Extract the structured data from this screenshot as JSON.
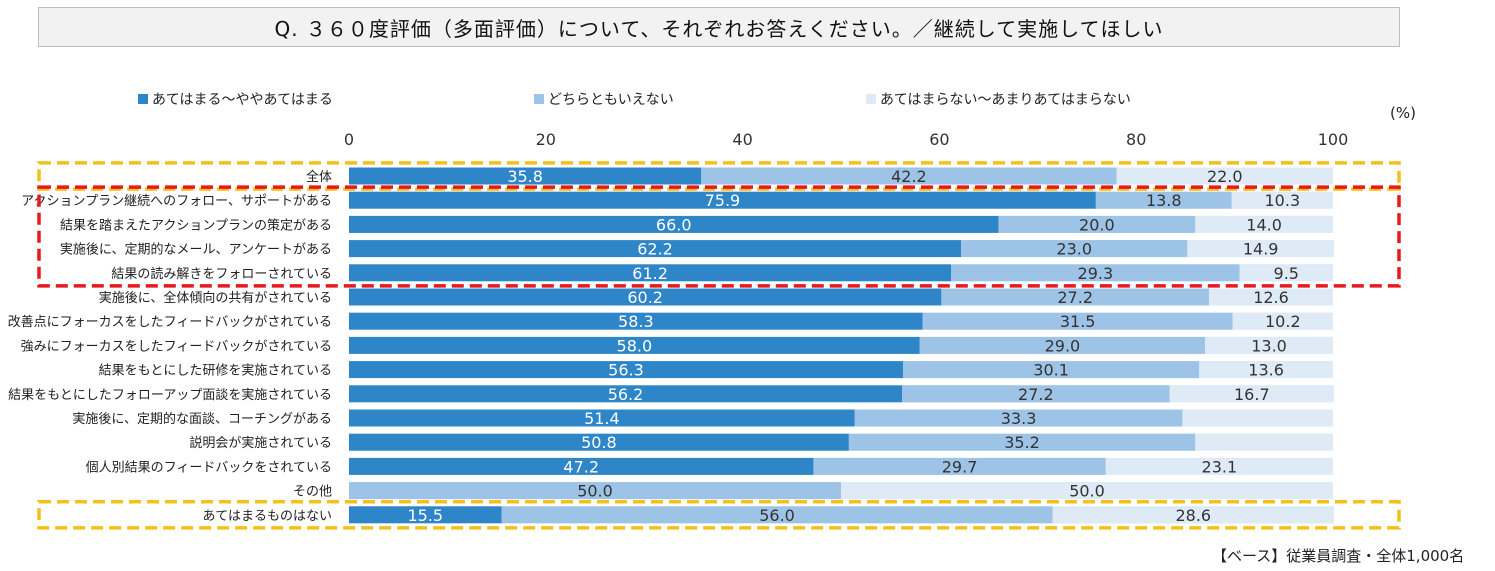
{
  "title": "Q. ３６０度評価（多面評価）について、それぞれお答えください。／継続して実施してほしい",
  "unit_label": "(%)",
  "base_note": "【ベース】従業員調査・全体1,000名",
  "colors": {
    "agree": "#2e86c8",
    "neutral": "#9dc3e6",
    "disagree": "#deebf7",
    "highlight_yellow": "#f3c01c",
    "highlight_red": "#e8191b"
  },
  "legend": [
    {
      "label": "あてはまる～ややあてはまる",
      "color": "#2e86c8"
    },
    {
      "label": "どちらともいえない",
      "color": "#9dc3e6"
    },
    {
      "label": "あてはまらない～あまりあてはまらない",
      "color": "#deebf7"
    }
  ],
  "chart_data": {
    "type": "bar",
    "orientation": "horizontal",
    "stacked": true,
    "xlim": [
      0,
      100
    ],
    "xticks": [
      "0",
      "20",
      "40",
      "60",
      "80",
      "100"
    ],
    "categories": [
      "全体",
      "アクションプラン継続へのフォロー、サポートがある",
      "結果を踏まえたアクションプランの策定がある",
      "実施後に、定期的なメール、アンケートがある",
      "結果の読み解きをフォローされている",
      "実施後に、全体傾向の共有がされている",
      "改善点にフォーカスをしたフィードバックがされている",
      "強みにフォーカスをしたフィードバックがされている",
      "結果をもとにした研修を実施されている",
      "結果をもとにしたフォローアップ面談を実施されている",
      "実施後に、定期的な面談、コーチングがある",
      "説明会が実施されている",
      "個人別結果のフィードバックをされている",
      "その他",
      "あてはまるものはない"
    ],
    "series": [
      {
        "name": "あてはまる～ややあてはまる",
        "values": [
          35.8,
          75.9,
          66.0,
          62.2,
          61.2,
          60.2,
          58.3,
          58.0,
          56.3,
          56.2,
          51.4,
          50.8,
          47.2,
          0.0,
          15.5
        ],
        "labels": [
          "35.8",
          "75.9",
          "66.0",
          "62.2",
          "61.2",
          "60.2",
          "58.3",
          "58.0",
          "56.3",
          "56.2",
          "51.4",
          "50.8",
          "47.2",
          "0",
          "15.5"
        ]
      },
      {
        "name": "どちらともいえない",
        "values": [
          42.2,
          13.8,
          20.0,
          23.0,
          29.3,
          27.2,
          31.5,
          29.0,
          30.1,
          27.2,
          33.3,
          35.2,
          29.7,
          50.0,
          56.0
        ],
        "labels": [
          "42.2",
          "13.8",
          "20.0",
          "23.0",
          "29.3",
          "27.2",
          "31.5",
          "29.0",
          "30.1",
          "27.2",
          "33.3",
          "35.2",
          "29.7",
          "50.0",
          "56.0"
        ]
      },
      {
        "name": "あてはまらない～あまりあてはまらない",
        "values": [
          22.0,
          10.3,
          14.0,
          14.9,
          9.5,
          12.6,
          10.2,
          13.0,
          13.6,
          16.7,
          15.3,
          14.0,
          23.1,
          50.0,
          28.6
        ],
        "labels": [
          "22.0",
          "10.3",
          "14.0",
          "14.9",
          "9.5",
          "12.6",
          "10.2",
          "13.0",
          "13.6",
          "16.7",
          "",
          "",
          "23.1",
          "50.0",
          "28.6"
        ]
      }
    ],
    "highlights": [
      {
        "style": "yellow-dashed",
        "rows": [
          "全体"
        ]
      },
      {
        "style": "red-dashed",
        "rows": [
          "アクションプラン継続へのフォロー、サポートがある",
          "結果の読み解きをフォローされている"
        ]
      },
      {
        "style": "yellow-dashed",
        "rows": [
          "あてはまるものはない"
        ]
      }
    ]
  }
}
